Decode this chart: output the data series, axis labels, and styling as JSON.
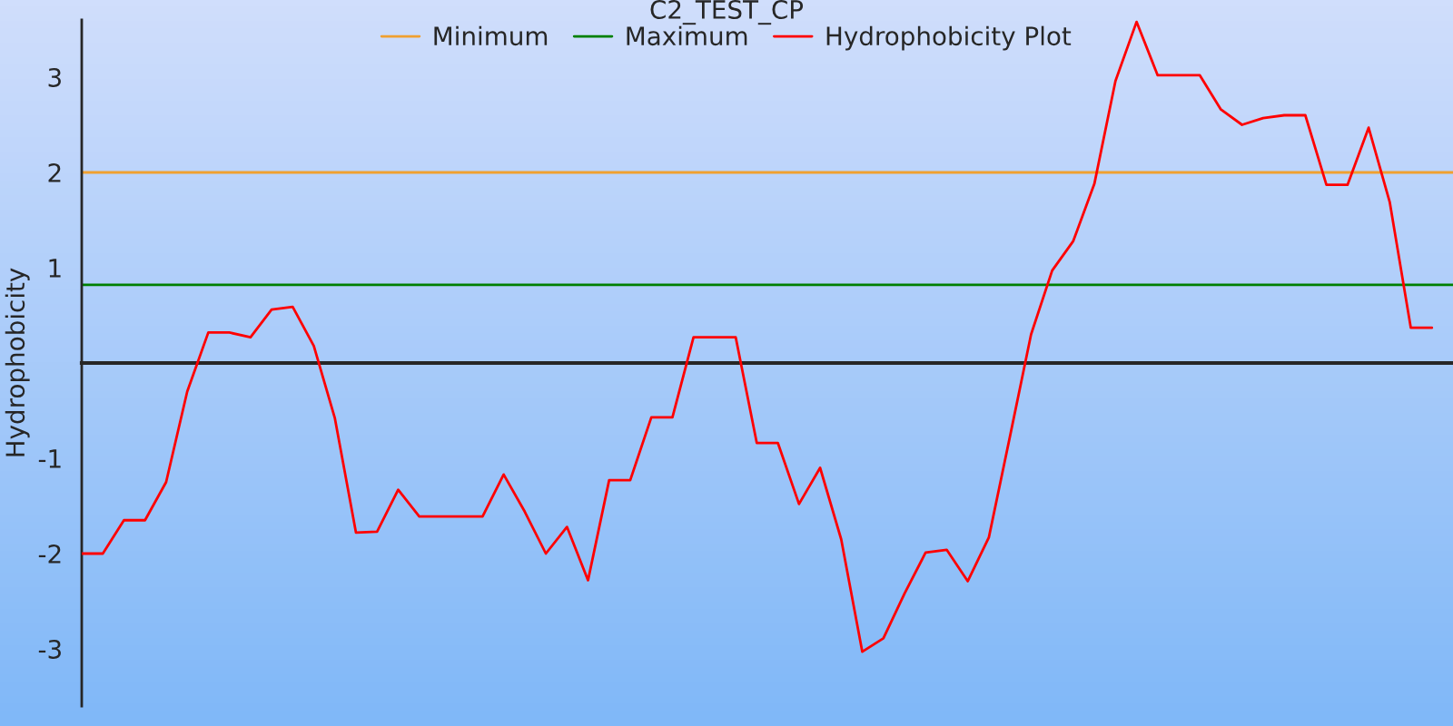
{
  "chart_data": {
    "type": "line",
    "title": "C2_TEST_CP",
    "ylabel": "Hydrophobicity",
    "categories": [
      null,
      null,
      null,
      null,
      null,
      null,
      null,
      null,
      null,
      null,
      null,
      null,
      null,
      null,
      null,
      null,
      null,
      null,
      null,
      null,
      null,
      null,
      null,
      null,
      null,
      null,
      null,
      null,
      null,
      null,
      null,
      null,
      null,
      null,
      null,
      null,
      null,
      null,
      null,
      null,
      null,
      null,
      null,
      null,
      null,
      null,
      null,
      null,
      null,
      null,
      null,
      null,
      null,
      null,
      null,
      null,
      null,
      null,
      null,
      null,
      null,
      null,
      null,
      null,
      null
    ],
    "series": [
      {
        "name": "Hydrophobicity Plot",
        "color": "#ff0000",
        "values": [
          -2.0,
          -2.0,
          -1.65,
          -1.65,
          -1.25,
          -0.3,
          0.32,
          0.32,
          0.27,
          0.56,
          0.59,
          0.18,
          -0.58,
          -1.78,
          -1.77,
          -1.33,
          -1.61,
          -1.61,
          -1.61,
          -1.61,
          -1.17,
          -1.56,
          -2.0,
          -1.72,
          -2.28,
          -1.23,
          -1.23,
          -0.57,
          -0.57,
          0.27,
          0.27,
          0.27,
          -0.84,
          -0.84,
          -1.48,
          -1.1,
          -1.85,
          -3.03,
          -2.89,
          -2.42,
          -1.99,
          -1.96,
          -2.29,
          -1.83,
          -0.77,
          0.3,
          0.97,
          1.28,
          1.88,
          2.96,
          3.58,
          3.02,
          3.02,
          3.02,
          2.66,
          2.5,
          2.57,
          2.6,
          2.6,
          1.87,
          1.87,
          2.47,
          1.69,
          0.37,
          0.37
        ]
      }
    ],
    "ref_lines": [
      {
        "axis": "y",
        "value": 2,
        "label": "Minimum",
        "color": "#f0a030"
      },
      {
        "axis": "y",
        "value": 0.82,
        "label": "Maximum",
        "color": "#008000"
      }
    ],
    "ylim": [
      -3.6,
      3.6
    ],
    "yticks": [
      3,
      2,
      1,
      -1,
      -2,
      -3
    ],
    "tick_labels": "y",
    "legend": "top",
    "grid": false,
    "marker": "none",
    "line_style": "solid"
  }
}
